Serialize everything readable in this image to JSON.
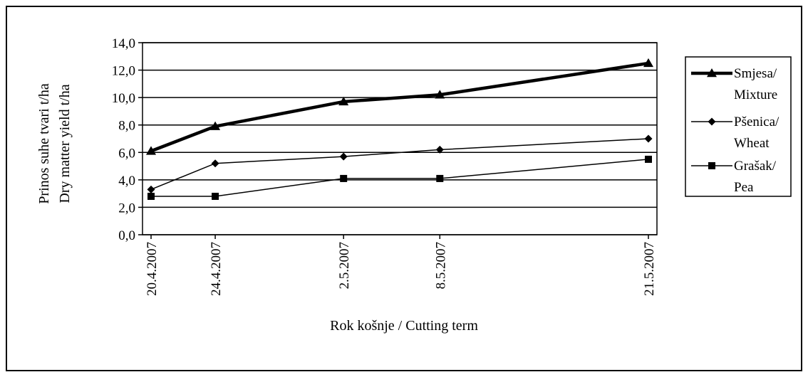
{
  "chart_data": {
    "type": "line",
    "title": "",
    "xlabel": "Rok košnje / Cutting term",
    "ylabel_lines": [
      "Prinos suhe tvari t/ha",
      "Dry matter yield t/ha"
    ],
    "x": [
      "2007-04-20",
      "2007-04-24",
      "2007-05-02",
      "2007-05-08",
      "2007-05-21"
    ],
    "x_tick_labels": [
      "20.4.2007",
      "24.4.2007",
      "2.5.2007",
      "8.5.2007",
      "21.5.2007"
    ],
    "ylim": [
      0,
      14
    ],
    "y_ticks": [
      0,
      2,
      4,
      6,
      8,
      10,
      12,
      14
    ],
    "y_tick_labels": [
      "0,0",
      "2,0",
      "4,0",
      "6,0",
      "8,0",
      "10,0",
      "12,0",
      "14,0"
    ],
    "grid": "horizontal",
    "legend_position": "right",
    "series": [
      {
        "legend_lines": [
          "Smjesa/",
          "Mixture"
        ],
        "values": [
          6.1,
          7.9,
          9.7,
          10.2,
          12.5
        ],
        "marker": "triangle",
        "line_style": "thick",
        "color": "#000000"
      },
      {
        "legend_lines": [
          "Pšenica/",
          "Wheat"
        ],
        "values": [
          3.3,
          5.2,
          5.7,
          6.2,
          7.0
        ],
        "marker": "diamond",
        "line_style": "thin",
        "color": "#000000"
      },
      {
        "legend_lines": [
          "Grašak/",
          "Pea"
        ],
        "values": [
          2.8,
          2.8,
          4.1,
          4.1,
          5.5
        ],
        "marker": "square",
        "line_style": "thin",
        "color": "#000000"
      }
    ]
  }
}
